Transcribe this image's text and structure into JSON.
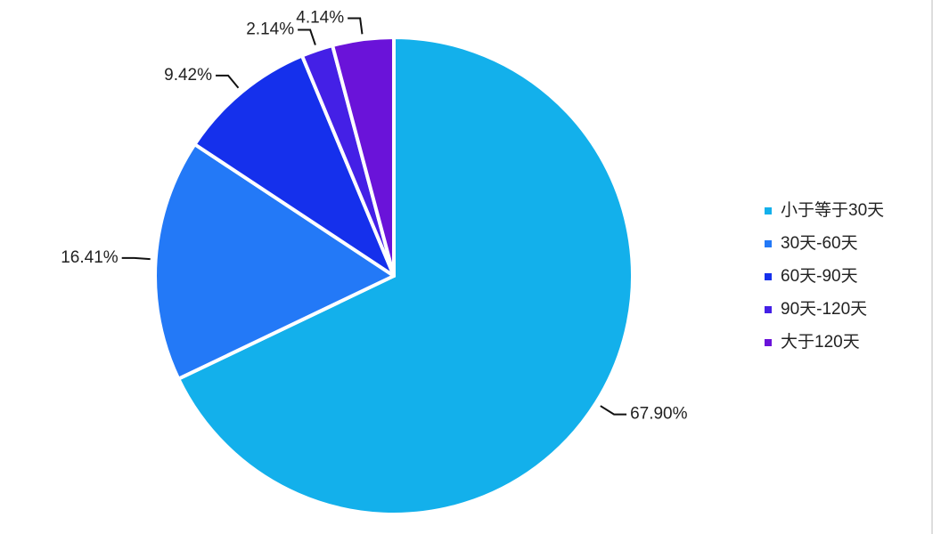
{
  "chart_data": {
    "type": "pie",
    "categories": [
      "小于等于30天",
      "30天-60天",
      "60天-90天",
      "90天-120天",
      "大于120天"
    ],
    "values": [
      67.9,
      16.41,
      9.42,
      2.14,
      4.14
    ],
    "value_labels": [
      "67.90%",
      "16.41%",
      "9.42%",
      "2.14%",
      "4.14%"
    ],
    "colors": [
      "#13b0eb",
      "#2379f7",
      "#1530ec",
      "#4420e6",
      "#6a13d9"
    ],
    "legend": "right"
  }
}
